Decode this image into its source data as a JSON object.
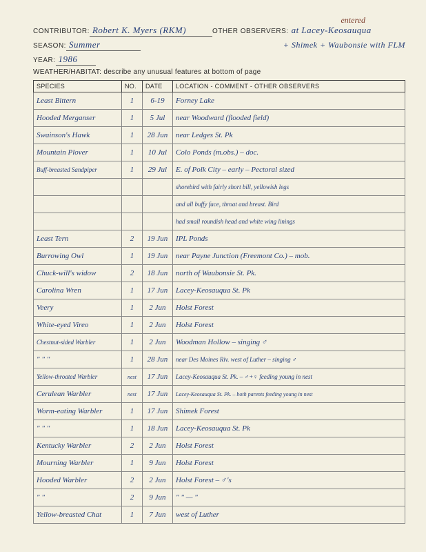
{
  "annotation": "entered",
  "header": {
    "contributor_label": "CONTRIBUTOR:",
    "contributor": "Robert K. Myers (RKM)",
    "observers_label": "OTHER OBSERVERS:",
    "observers_line1": "at Lacey-Keosauqua",
    "observers_line2": "+ Shimek + Waubonsie with FLM",
    "season_label": "SEASON:",
    "season": "Summer",
    "year_label": "YEAR:",
    "year": "1986",
    "weather_label": "WEATHER/HABITAT: describe any unusual features at bottom of page"
  },
  "columns": {
    "species": "SPECIES",
    "no": "NO.",
    "date": "DATE",
    "location": "LOCATION - COMMENT - OTHER OBSERVERS"
  },
  "rows": [
    {
      "species": "Least Bittern",
      "no": "1",
      "date": "6-19",
      "loc": "Forney Lake"
    },
    {
      "species": "Hooded Merganser",
      "no": "1",
      "date": "5 Jul",
      "loc": "near Woodward (flooded field)"
    },
    {
      "species": "Swainson's Hawk",
      "no": "1",
      "date": "28 Jun",
      "loc": "near Ledges St. Pk"
    },
    {
      "species": "Mountain Plover",
      "no": "1",
      "date": "10 Jul",
      "loc": "Colo Ponds (m.obs.) – doc."
    },
    {
      "species": "Buff-breasted Sandpiper",
      "no": "1",
      "date": "29 Jul",
      "loc": "E. of Polk City – early – Pectoral sized"
    },
    {
      "species": "",
      "no": "",
      "date": "",
      "loc": "shorebird with fairly short bill, yellowish legs"
    },
    {
      "species": "",
      "no": "",
      "date": "",
      "loc": "and all buffy face, throat and breast. Bird"
    },
    {
      "species": "",
      "no": "",
      "date": "",
      "loc": "had small roundish head and white wing linings"
    },
    {
      "species": "Least Tern",
      "no": "2",
      "date": "19 Jun",
      "loc": "IPL Ponds"
    },
    {
      "species": "Burrowing Owl",
      "no": "1",
      "date": "19 Jun",
      "loc": "near Payne Junction (Freemont Co.) – mob."
    },
    {
      "species": "Chuck-will's widow",
      "no": "2",
      "date": "18 Jun",
      "loc": "north of Waubonsie St. Pk."
    },
    {
      "species": "Carolina Wren",
      "no": "1",
      "date": "17 Jun",
      "loc": "Lacey-Keosauqua St. Pk"
    },
    {
      "species": "Veery",
      "no": "1",
      "date": "2 Jun",
      "loc": "Holst Forest"
    },
    {
      "species": "White-eyed Vireo",
      "no": "1",
      "date": "2 Jun",
      "loc": "Holst Forest"
    },
    {
      "species": "Chestnut-sided Warbler",
      "no": "1",
      "date": "2 Jun",
      "loc": "Woodman Hollow – singing ♂"
    },
    {
      "species": "  \"     \"     \"",
      "no": "1",
      "date": "28 Jun",
      "loc": "near Des Moines Riv. west of Luther – singing ♂"
    },
    {
      "species": "Yellow-throated Warbler",
      "no": "nest",
      "date": "17 Jun",
      "loc": "Lacey-Keosauqua St. Pk. – ♂+♀ feeding young in nest"
    },
    {
      "species": "Cerulean Warbler",
      "no": "nest",
      "date": "17 Jun",
      "loc": "Lacey-Keosauqua St. Pk. – both parents feeding young in nest"
    },
    {
      "species": "Worm-eating Warbler",
      "no": "1",
      "date": "17 Jun",
      "loc": "Shimek Forest"
    },
    {
      "species": "  \"     \"     \"",
      "no": "1",
      "date": "18 Jun",
      "loc": "Lacey-Keosauqua St. Pk"
    },
    {
      "species": "Kentucky Warbler",
      "no": "2",
      "date": "2 Jun",
      "loc": "Holst Forest"
    },
    {
      "species": "Mourning Warbler",
      "no": "1",
      "date": "9 Jun",
      "loc": "Holst Forest"
    },
    {
      "species": "Hooded Warbler",
      "no": "2",
      "date": "2 Jun",
      "loc": "Holst Forest – ♂'s"
    },
    {
      "species": "  \"     \"",
      "no": "2",
      "date": "9 Jun",
      "loc": "   \"       \"   —   \""
    },
    {
      "species": "Yellow-breasted Chat",
      "no": "1",
      "date": "7 Jun",
      "loc": "west of Luther"
    }
  ]
}
